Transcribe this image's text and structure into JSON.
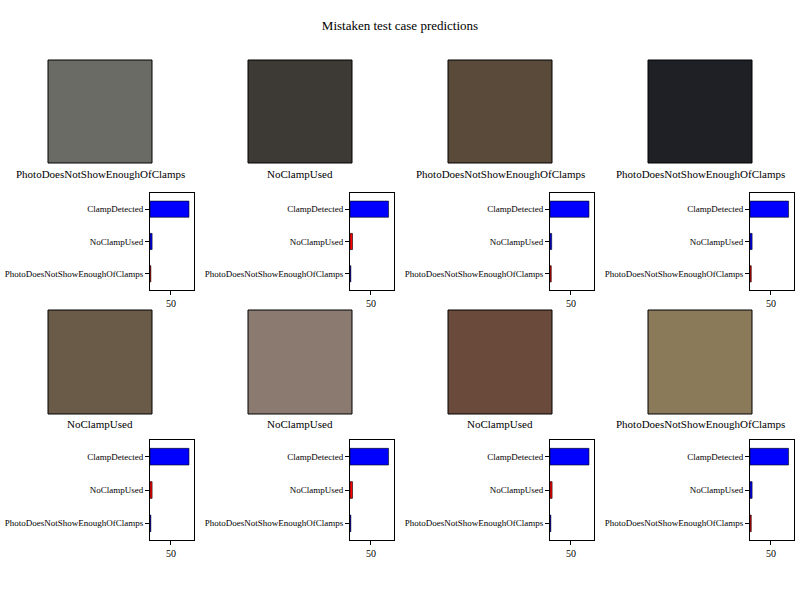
{
  "title": "Mistaken test case predictions",
  "chart_data": [
    {
      "type": "bar",
      "orientation": "horizontal",
      "title": "PhotoDoesNotShowEnoughOfClamps",
      "categories": [
        "ClampDetected",
        "NoClampUsed",
        "PhotoDoesNotShowEnoughOfClamps"
      ],
      "values": [
        93,
        5,
        2
      ],
      "colors": [
        "#0000ff",
        "#0000ff",
        "#ff0000"
      ],
      "xlim": [
        0,
        105
      ],
      "xticks": [
        50
      ],
      "grid": false
    },
    {
      "type": "bar",
      "orientation": "horizontal",
      "title": "NoClampUsed",
      "categories": [
        "ClampDetected",
        "NoClampUsed",
        "PhotoDoesNotShowEnoughOfClamps"
      ],
      "values": [
        92,
        6,
        2
      ],
      "colors": [
        "#0000ff",
        "#ff0000",
        "#0000ff"
      ],
      "xlim": [
        0,
        105
      ],
      "xticks": [
        50
      ],
      "grid": false
    },
    {
      "type": "bar",
      "orientation": "horizontal",
      "title": "PhotoDoesNotShowEnoughOfClamps",
      "categories": [
        "ClampDetected",
        "NoClampUsed",
        "PhotoDoesNotShowEnoughOfClamps"
      ],
      "values": [
        93,
        4,
        3
      ],
      "colors": [
        "#0000ff",
        "#0000ff",
        "#ff0000"
      ],
      "xlim": [
        0,
        105
      ],
      "xticks": [
        50
      ],
      "grid": false
    },
    {
      "type": "bar",
      "orientation": "horizontal",
      "title": "PhotoDoesNotShowEnoughOfClamps",
      "categories": [
        "ClampDetected",
        "NoClampUsed",
        "PhotoDoesNotShowEnoughOfClamps"
      ],
      "values": [
        92,
        5,
        3
      ],
      "colors": [
        "#0000ff",
        "#0000ff",
        "#ff0000"
      ],
      "xlim": [
        0,
        105
      ],
      "xticks": [
        50
      ],
      "grid": false
    },
    {
      "type": "bar",
      "orientation": "horizontal",
      "title": "NoClampUsed",
      "categories": [
        "ClampDetected",
        "NoClampUsed",
        "PhotoDoesNotShowEnoughOfClamps"
      ],
      "values": [
        93,
        5,
        2
      ],
      "colors": [
        "#0000ff",
        "#ff0000",
        "#0000ff"
      ],
      "xlim": [
        0,
        105
      ],
      "xticks": [
        50
      ],
      "grid": false
    },
    {
      "type": "bar",
      "orientation": "horizontal",
      "title": "NoClampUsed",
      "categories": [
        "ClampDetected",
        "NoClampUsed",
        "PhotoDoesNotShowEnoughOfClamps"
      ],
      "values": [
        92,
        6,
        2
      ],
      "colors": [
        "#0000ff",
        "#ff0000",
        "#0000ff"
      ],
      "xlim": [
        0,
        105
      ],
      "xticks": [
        50
      ],
      "grid": false
    },
    {
      "type": "bar",
      "orientation": "horizontal",
      "title": "NoClampUsed",
      "categories": [
        "ClampDetected",
        "NoClampUsed",
        "PhotoDoesNotShowEnoughOfClamps"
      ],
      "values": [
        93,
        5,
        2
      ],
      "colors": [
        "#0000ff",
        "#ff0000",
        "#0000ff"
      ],
      "xlim": [
        0,
        105
      ],
      "xticks": [
        50
      ],
      "grid": false
    },
    {
      "type": "bar",
      "orientation": "horizontal",
      "title": "PhotoDoesNotShowEnoughOfClamps",
      "categories": [
        "ClampDetected",
        "NoClampUsed",
        "PhotoDoesNotShowEnoughOfClamps"
      ],
      "values": [
        92,
        5,
        3
      ],
      "colors": [
        "#0000ff",
        "#0000ff",
        "#ff0000"
      ],
      "xlim": [
        0,
        105
      ],
      "xticks": [
        50
      ],
      "grid": false
    }
  ]
}
